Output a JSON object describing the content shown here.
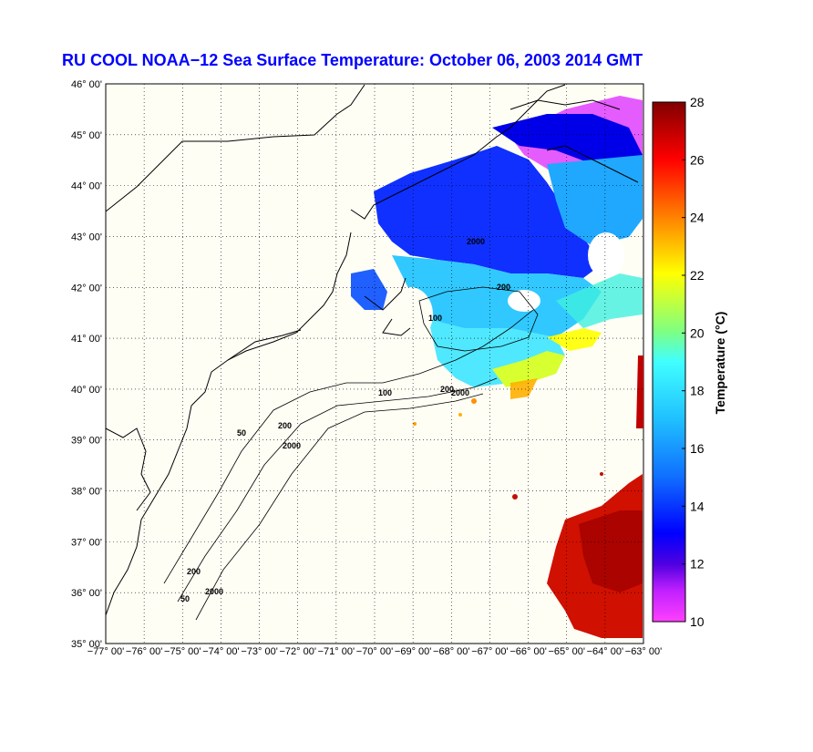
{
  "title": "RU COOL  NOAA−12  Sea Surface Temperature:  October 06, 2003 2014 GMT",
  "map": {
    "lat_labels": [
      "46° 00'",
      "45° 00'",
      "44° 00'",
      "43° 00'",
      "42° 00'",
      "41° 00'",
      "40° 00'",
      "39° 00'",
      "38° 00'",
      "37° 00'",
      "36° 00'",
      "35° 00'"
    ],
    "lon_labels": [
      "−77° 00'",
      "−76° 00'",
      "−75° 00'",
      "−74° 00'",
      "−73° 00'",
      "−72° 00'",
      "−71° 00'",
      "−70° 00'",
      "−69° 00'",
      "−68° 00'",
      "−67° 00'",
      "−66° 00'",
      "−65° 00'",
      "−64° 00'",
      "−63° 00'"
    ],
    "isobath_labels": [
      "100",
      "200",
      "2000",
      "100",
      "200",
      "2000",
      "50",
      "200",
      "2000",
      "50",
      "200",
      "2000"
    ],
    "background_color": "#fffef5",
    "grid": true
  },
  "colorbar": {
    "title": "Temperature (°C)",
    "ticks": [
      "28",
      "26",
      "24",
      "22",
      "20",
      "18",
      "16",
      "14",
      "12",
      "10"
    ],
    "range": [
      10,
      28
    ],
    "colors": [
      "#ff00ff",
      "#8000c0",
      "#0000ff",
      "#1060ff",
      "#20c0ff",
      "#40ffff",
      "#60ffd0",
      "#c0ff40",
      "#ffff00",
      "#ff8000",
      "#ff0000",
      "#c00000",
      "#800000"
    ]
  }
}
